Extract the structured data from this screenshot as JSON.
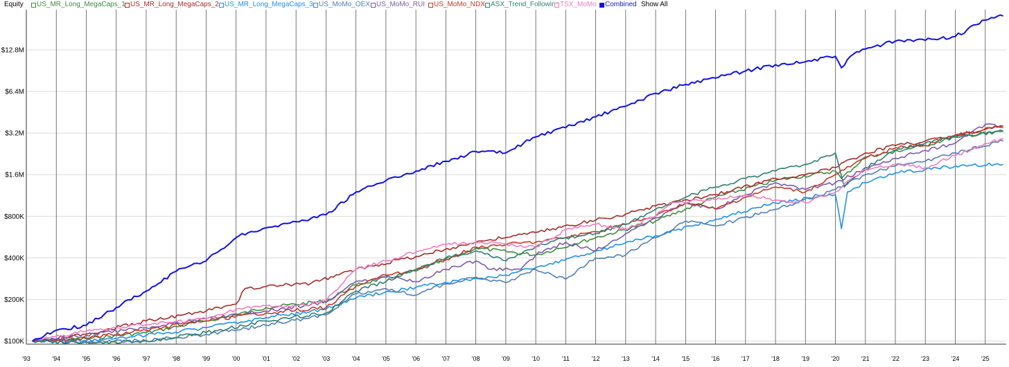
{
  "header": {
    "title": "Equity",
    "show_all": "Show All"
  },
  "chart_data": {
    "type": "line",
    "title": "Equity",
    "y_scale": "log",
    "ylim": [
      95000,
      25000000
    ],
    "xlim": [
      1993.0,
      2025.7
    ],
    "grid": {
      "x": true,
      "y": true
    },
    "legend_position": "top",
    "yticks": [
      {
        "value": 100000,
        "label": "$100K"
      },
      {
        "value": 200000,
        "label": "$200K"
      },
      {
        "value": 400000,
        "label": "$400K"
      },
      {
        "value": 800000,
        "label": "$800K"
      },
      {
        "value": 1600000,
        "label": "$1.6M"
      },
      {
        "value": 3200000,
        "label": "$3.2M"
      },
      {
        "value": 6400000,
        "label": "$6.4M"
      },
      {
        "value": 12800000,
        "label": "$12.8M"
      }
    ],
    "xticks": [
      {
        "value": 1993,
        "label": "'93"
      },
      {
        "value": 1994,
        "label": "'94"
      },
      {
        "value": 1995,
        "label": "'95"
      },
      {
        "value": 1996,
        "label": "'96"
      },
      {
        "value": 1997,
        "label": "'97"
      },
      {
        "value": 1998,
        "label": "'98"
      },
      {
        "value": 1999,
        "label": "'99"
      },
      {
        "value": 2000,
        "label": "'00"
      },
      {
        "value": 2001,
        "label": "'01"
      },
      {
        "value": 2002,
        "label": "'02"
      },
      {
        "value": 2003,
        "label": "'03"
      },
      {
        "value": 2004,
        "label": "'04"
      },
      {
        "value": 2005,
        "label": "'05"
      },
      {
        "value": 2006,
        "label": "'06"
      },
      {
        "value": 2007,
        "label": "'07"
      },
      {
        "value": 2008,
        "label": "'08"
      },
      {
        "value": 2009,
        "label": "'09"
      },
      {
        "value": 2010,
        "label": "'10"
      },
      {
        "value": 2011,
        "label": "'11"
      },
      {
        "value": 2012,
        "label": "'12"
      },
      {
        "value": 2013,
        "label": "'13"
      },
      {
        "value": 2014,
        "label": "'14"
      },
      {
        "value": 2015,
        "label": "'15"
      },
      {
        "value": 2016,
        "label": "'16"
      },
      {
        "value": 2017,
        "label": "'17"
      },
      {
        "value": 2018,
        "label": "'18"
      },
      {
        "value": 2019,
        "label": "'19"
      },
      {
        "value": 2020,
        "label": "'20"
      },
      {
        "value": 2021,
        "label": "'21"
      },
      {
        "value": 2022,
        "label": "'22"
      },
      {
        "value": 2023,
        "label": "'23"
      },
      {
        "value": 2024,
        "label": "'24"
      },
      {
        "value": 2025,
        "label": "'25"
      }
    ],
    "series": [
      {
        "name": "US_MR_Long_MegaCaps_1",
        "color": "#3c8c3c",
        "checked": false,
        "x": [
          1993.2,
          1995,
          1997,
          1999,
          2000,
          2001,
          2003,
          2004,
          2006,
          2008,
          2010,
          2012,
          2014,
          2016,
          2018,
          2020,
          2020.2,
          2021,
          2023,
          2024,
          2025.6
        ],
        "y": [
          100000,
          104000,
          115000,
          140000,
          155000,
          175000,
          195000,
          255000,
          320000,
          470000,
          420000,
          560000,
          740000,
          1100000,
          1450000,
          1700000,
          1500000,
          2150000,
          2600000,
          3000000,
          3300000
        ]
      },
      {
        "name": "US_MR_Long_MegaCaps_2",
        "color": "#a52a2a",
        "checked": false,
        "x": [
          1993.2,
          1995,
          1997,
          1999,
          2000,
          2000.3,
          2001,
          2002.5,
          2004,
          2006,
          2008,
          2010,
          2012,
          2013,
          2014,
          2016,
          2018,
          2019,
          2020,
          2021,
          2022,
          2023,
          2024,
          2025.6
        ],
        "y": [
          100000,
          112000,
          140000,
          165000,
          185000,
          240000,
          248000,
          262000,
          330000,
          410000,
          520000,
          610000,
          750000,
          830000,
          950000,
          1150000,
          1500000,
          1600000,
          1800000,
          2300000,
          2600000,
          2800000,
          3100000,
          3600000
        ]
      },
      {
        "name": "US_MR_Long_MegaCaps_3",
        "color": "#1e90e8",
        "checked": false,
        "x": [
          1993.2,
          1995,
          1997,
          1999,
          2001,
          2003,
          2004,
          2006,
          2008,
          2009,
          2010,
          2012,
          2014,
          2016,
          2018,
          2020,
          2020.2,
          2020.4,
          2021,
          2022,
          2023,
          2024,
          2025.6
        ],
        "y": [
          100000,
          101000,
          110000,
          125000,
          148000,
          170000,
          205000,
          245000,
          285000,
          300000,
          340000,
          450000,
          580000,
          760000,
          1000000,
          1150000,
          650000,
          1200000,
          1400000,
          1650000,
          1750000,
          1850000,
          1900000
        ]
      },
      {
        "name": "US_MoMo_OEX",
        "color": "#4f7fb3",
        "checked": false,
        "x": [
          1993.2,
          1995,
          1997,
          1999,
          2001,
          2003,
          2004,
          2005,
          2006,
          2007,
          2008,
          2009,
          2010,
          2011,
          2012,
          2013,
          2014,
          2015,
          2016,
          2018,
          2020,
          2021,
          2022,
          2023,
          2024,
          2025.6
        ],
        "y": [
          100000,
          99000,
          101000,
          112000,
          130000,
          155000,
          220000,
          240000,
          215000,
          260000,
          290000,
          265000,
          330000,
          280000,
          400000,
          420000,
          560000,
          740000,
          680000,
          900000,
          1250000,
          1600000,
          1850000,
          2000000,
          2300000,
          2800000
        ]
      },
      {
        "name": "US_MoMo_RUI",
        "color": "#7b59a8",
        "checked": false,
        "x": [
          1993.2,
          1995,
          1997,
          1999,
          2001,
          2003,
          2004,
          2005,
          2006,
          2007,
          2008,
          2008.5,
          2009.5,
          2010,
          2011,
          2012,
          2013,
          2014,
          2015,
          2016,
          2017,
          2018,
          2019,
          2020,
          2021,
          2022,
          2023,
          2024,
          2025,
          2025.6
        ],
        "y": [
          100000,
          110000,
          125000,
          145000,
          165000,
          190000,
          270000,
          290000,
          270000,
          330000,
          380000,
          330000,
          330000,
          420000,
          520000,
          450000,
          600000,
          780000,
          1000000,
          900000,
          1150000,
          1400000,
          1250000,
          1400000,
          1750000,
          2100000,
          2400000,
          2700000,
          3700000,
          3500000
        ]
      },
      {
        "name": "US_MoMo_NDX",
        "color": "#c0392b",
        "checked": false,
        "x": [
          1993.2,
          1995,
          1997,
          1999,
          2001,
          2003,
          2004,
          2005,
          2006,
          2007,
          2008,
          2009,
          2010,
          2011,
          2012,
          2013,
          2014,
          2015,
          2016,
          2017,
          2018,
          2019,
          2020,
          2021,
          2022,
          2023,
          2024,
          2025.6
        ],
        "y": [
          100000,
          105000,
          120000,
          140000,
          160000,
          175000,
          250000,
          300000,
          330000,
          390000,
          480000,
          500000,
          520000,
          560000,
          620000,
          700000,
          800000,
          1000000,
          900000,
          1100000,
          1300000,
          1200000,
          1600000,
          2100000,
          2500000,
          2600000,
          3100000,
          3600000
        ]
      },
      {
        "name": "ASX_Trend_Following",
        "color": "#2f7d70",
        "checked": false,
        "x": [
          1993.2,
          1995,
          1997,
          1999,
          2001,
          2003,
          2004,
          2005,
          2006,
          2007,
          2008,
          2009,
          2010,
          2011,
          2012,
          2013,
          2014,
          2015,
          2016,
          2017,
          2018,
          2019,
          2020,
          2020.3,
          2021,
          2022,
          2023,
          2024,
          2025.6
        ],
        "y": [
          100000,
          98000,
          100000,
          115000,
          140000,
          160000,
          230000,
          270000,
          330000,
          400000,
          450000,
          380000,
          480000,
          560000,
          600000,
          700000,
          900000,
          1100000,
          1300000,
          1500000,
          1700000,
          1900000,
          2300000,
          1300000,
          1800000,
          2400000,
          2700000,
          3000000,
          3300000
        ]
      },
      {
        "name": "TSX_MoMo",
        "color": "#f07cc0",
        "checked": false,
        "x": [
          1993.2,
          1995,
          1997,
          1999,
          2000,
          2001,
          2002,
          2003,
          2003.2,
          2004,
          2005,
          2006,
          2007,
          2008,
          2009,
          2010,
          2011,
          2012,
          2013,
          2014,
          2014.5,
          2016,
          2017,
          2018,
          2019,
          2020,
          2021,
          2022,
          2023,
          2024,
          2025,
          2025.6
        ],
        "y": [
          100000,
          118000,
          132000,
          145000,
          170000,
          180000,
          180000,
          195000,
          220000,
          330000,
          380000,
          440000,
          500000,
          520000,
          500000,
          480000,
          640000,
          700000,
          640000,
          800000,
          1000000,
          1050000,
          1150000,
          1050000,
          1000000,
          1200000,
          1750000,
          1900000,
          1800000,
          2200000,
          2700000,
          2900000
        ]
      },
      {
        "name": "Combined",
        "color": "#1010e0",
        "checked": true,
        "x": [
          1993.2,
          1994,
          1995,
          1996,
          1997,
          1998,
          1999,
          2000,
          2000.5,
          2001,
          2002,
          2003,
          2004,
          2005,
          2006,
          2007,
          2008,
          2009,
          2010,
          2011,
          2012,
          2013,
          2014,
          2015,
          2016,
          2017,
          2018,
          2019,
          2020,
          2020.2,
          2020.5,
          2021,
          2022,
          2023,
          2024,
          2025,
          2025.6
        ],
        "y": [
          100000,
          120000,
          130000,
          175000,
          230000,
          320000,
          380000,
          560000,
          620000,
          660000,
          730000,
          820000,
          1200000,
          1450000,
          1700000,
          2000000,
          2350000,
          2300000,
          3000000,
          3500000,
          4200000,
          5000000,
          6200000,
          7200000,
          8000000,
          9000000,
          10000000,
          10500000,
          11500000,
          9500000,
          11500000,
          13000000,
          14800000,
          15000000,
          16000000,
          21000000,
          22500000
        ]
      }
    ]
  }
}
